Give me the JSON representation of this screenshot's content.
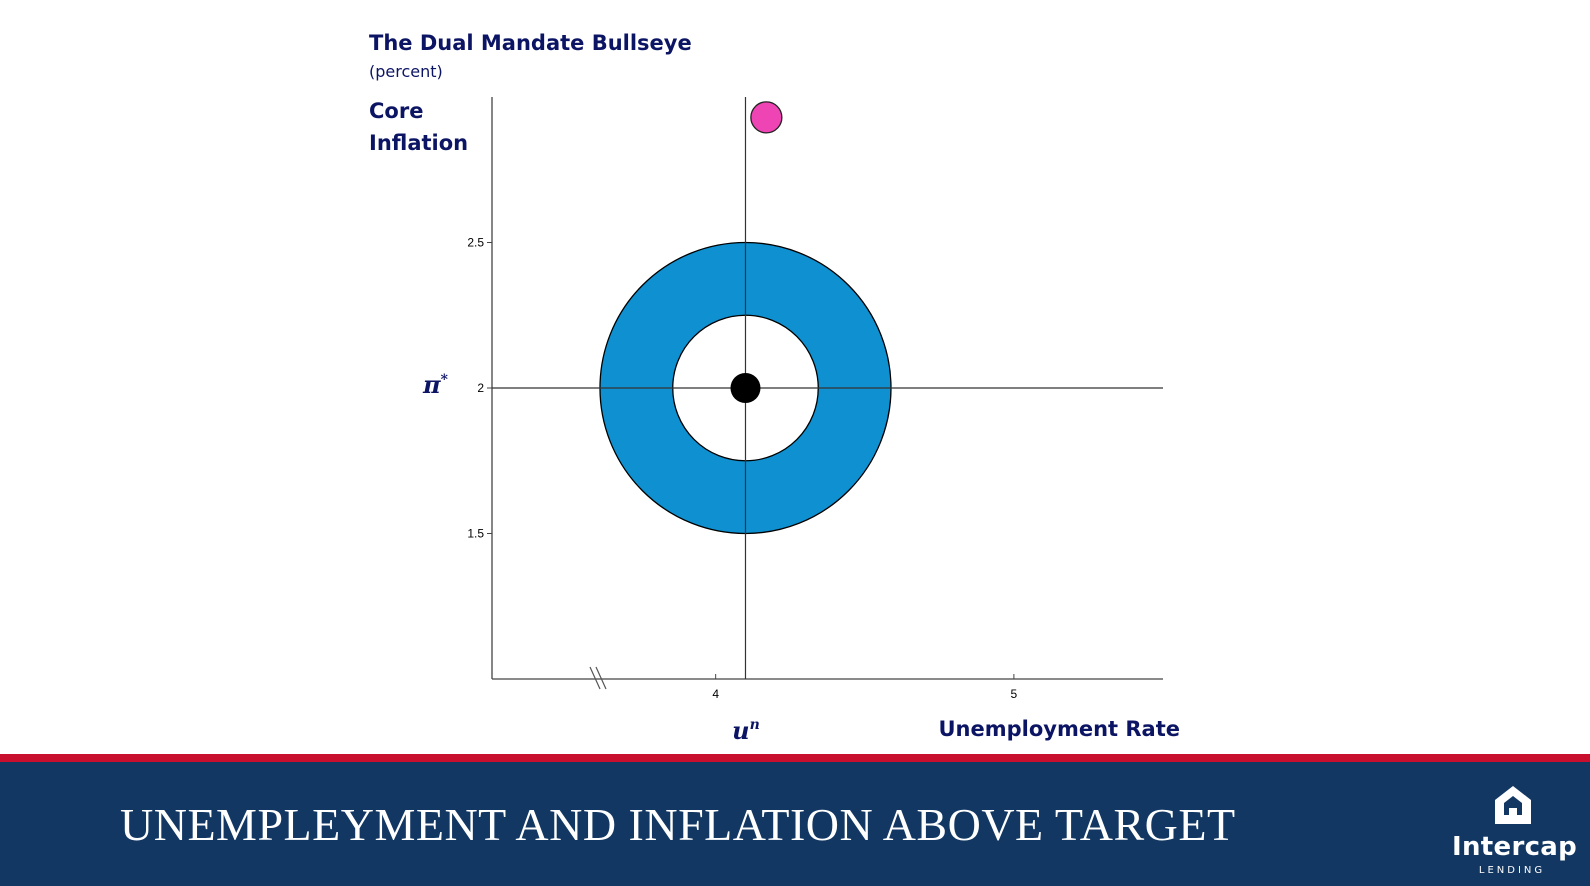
{
  "chart_data": {
    "type": "scatter",
    "title": "The Dual Mandate Bullseye",
    "subtitle": "(percent)",
    "ylabel_line1": "Core",
    "ylabel_line2": "Inflation",
    "xlabel": "Unemployment Rate",
    "x_ticks": [
      "4",
      "5"
    ],
    "y_ticks": [
      "1.5",
      "2",
      "2.5"
    ],
    "xlim": [
      3.25,
      5.5
    ],
    "ylim": [
      1.0,
      3.0
    ],
    "x_axis_break": true,
    "target_marker": {
      "x_label": "u",
      "x_label_sup": "n",
      "y_label": "π",
      "y_label_sup": "*",
      "x": 4.1,
      "y": 2.0
    },
    "rings": [
      {
        "role": "outer",
        "radius_y": 0.5,
        "color": "#0f90d0"
      },
      {
        "role": "inner",
        "radius_y": 0.25,
        "color": "#ffffff"
      }
    ],
    "points": [
      {
        "role": "target",
        "x": 4.1,
        "y": 2.0,
        "color": "#000000"
      },
      {
        "role": "current",
        "x": 4.17,
        "y": 2.93,
        "color": "#ee44b4"
      }
    ],
    "grid": false,
    "legend": "none"
  },
  "footer": {
    "title": "UNEMPLEYMENT AND INFLATION ABOVE TARGET",
    "bg_color": "#123762",
    "accent_color": "#c8102e"
  },
  "logo": {
    "name": "Intercap",
    "subtitle": "LENDING",
    "icon": "house-icon"
  }
}
